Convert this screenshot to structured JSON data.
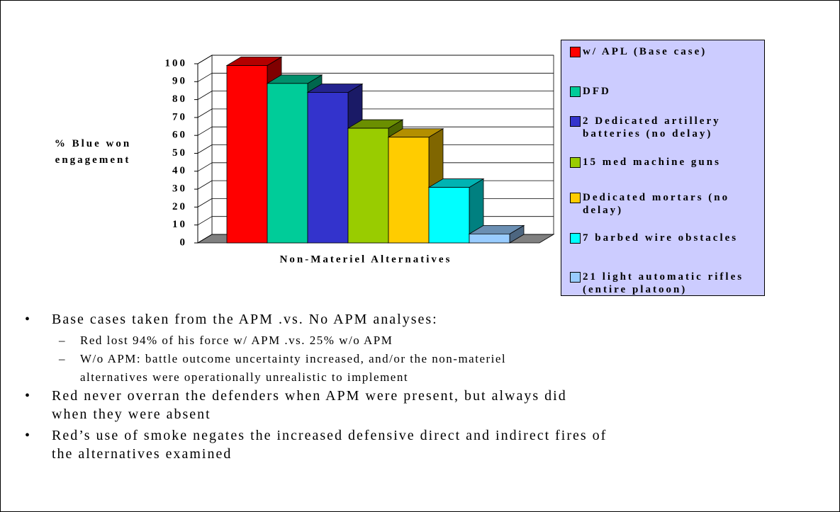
{
  "chart_data": {
    "type": "bar3d",
    "axis_label": "% Blue won engagement",
    "x_label": "Non-Materiel Alternatives",
    "categories": [
      "w/ APL (Base case)",
      "DFD",
      "2 Dedicated artillery batteries (no delay)",
      "15 med machine guns",
      "Dedicated mortars (no delay)",
      "7 barbed wire obstacles",
      "21 light automatic rifles (entire platoon)"
    ],
    "values": [
      99,
      89,
      84,
      64,
      59,
      31,
      5
    ],
    "colors": [
      "#ff0000",
      "#00cc99",
      "#3333cc",
      "#99cc00",
      "#ffcc00",
      "#00ffff",
      "#99ccff"
    ],
    "ylim": [
      0,
      100
    ],
    "yticks": [
      0,
      10,
      20,
      30,
      40,
      50,
      60,
      70,
      80,
      90,
      100
    ],
    "grid": true
  },
  "bullets": [
    {
      "lines": [
        "Base cases taken from the APM .vs. No APM analyses:"
      ],
      "sub": [
        {
          "lines": [
            "Red lost 94% of his force w/ APM .vs. 25% w/o APM"
          ]
        },
        {
          "lines": [
            "W/o APM: battle outcome uncertainty increased, and/or the non-materiel",
            "alternatives were operationally unrealistic to implement"
          ]
        }
      ]
    },
    {
      "lines": [
        "Red never overran the defenders when APM were present, but always did",
        "when they were absent"
      ],
      "sub": []
    },
    {
      "lines": [
        "Red’s use of smoke negates the increased defensive direct and indirect fires of",
        "the alternatives examined"
      ],
      "sub": []
    }
  ]
}
